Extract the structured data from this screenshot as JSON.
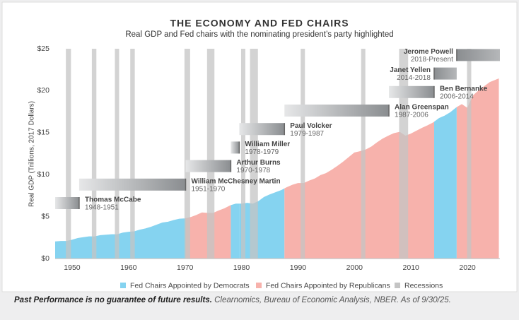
{
  "chart_data": {
    "type": "area",
    "title": "THE ECONOMY AND FED CHAIRS",
    "subtitle": "Real GDP and Fed chairs with the nominating president’s party highlighted",
    "y_label": "Real GDP (Trillions, 2017 Dollars)",
    "x": [
      1947,
      1948,
      1949,
      1950,
      1951,
      1952,
      1953,
      1954,
      1955,
      1956,
      1957,
      1958,
      1959,
      1960,
      1961,
      1962,
      1963,
      1964,
      1965,
      1966,
      1967,
      1968,
      1969,
      1970,
      1971,
      1972,
      1973,
      1974,
      1975,
      1976,
      1977,
      1978,
      1979,
      1980,
      1981,
      1982,
      1983,
      1984,
      1985,
      1986,
      1987,
      1988,
      1989,
      1990,
      1991,
      1992,
      1993,
      1994,
      1995,
      1996,
      1997,
      1998,
      1999,
      2000,
      2001,
      2002,
      2003,
      2004,
      2005,
      2006,
      2007,
      2008,
      2009,
      2010,
      2011,
      2012,
      2013,
      2014,
      2015,
      2016,
      2017,
      2018,
      2019,
      2020,
      2021,
      2022,
      2023,
      2024,
      2025.5
    ],
    "values": [
      2.0,
      2.05,
      2.05,
      2.2,
      2.4,
      2.5,
      2.6,
      2.6,
      2.75,
      2.8,
      2.85,
      2.85,
      3.05,
      3.15,
      3.2,
      3.4,
      3.55,
      3.75,
      4.0,
      4.25,
      4.35,
      4.55,
      4.7,
      4.75,
      4.9,
      5.15,
      5.45,
      5.4,
      5.4,
      5.7,
      5.95,
      6.3,
      6.5,
      6.5,
      6.6,
      6.5,
      6.8,
      7.3,
      7.6,
      7.85,
      8.1,
      8.45,
      8.75,
      8.95,
      8.95,
      9.25,
      9.5,
      9.9,
      10.15,
      10.55,
      11.0,
      11.5,
      12.05,
      12.6,
      12.75,
      12.95,
      13.3,
      13.8,
      14.25,
      14.6,
      14.9,
      15.05,
      14.6,
      14.85,
      15.2,
      15.55,
      15.85,
      16.2,
      16.7,
      17.0,
      17.4,
      17.95,
      18.35,
      17.9,
      19.4,
      20.0,
      20.5,
      21.0,
      21.4
    ],
    "xlim": [
      1947,
      2025.75
    ],
    "xticks": [
      1950,
      1960,
      1970,
      1980,
      1990,
      2000,
      2010,
      2020
    ],
    "ylim": [
      0,
      25
    ],
    "yticks": [
      {
        "value": 0,
        "label": "$0"
      },
      {
        "value": 5,
        "label": "$5"
      },
      {
        "value": 10,
        "label": "$10"
      },
      {
        "value": 15,
        "label": "$15"
      },
      {
        "value": 20,
        "label": "$20"
      },
      {
        "value": 25,
        "label": "$25"
      }
    ],
    "grid": false,
    "series": [
      {
        "name": "Fed Chairs Appointed by Democrats",
        "color": "#85d3f0",
        "chairs": [
          {
            "name": "Thomas McCabe",
            "term": "1948-1951",
            "start": 1947,
            "end": 1951.25
          },
          {
            "name": "William McChesney Martin",
            "term": "1951-1970",
            "start": 1951.25,
            "end": 1970.1
          },
          {
            "name": "William Miller",
            "term": "1978-1979",
            "start": 1978.1,
            "end": 1979.6
          },
          {
            "name": "Paul Volcker",
            "term": "1979-1987",
            "start": 1979.6,
            "end": 1987.6
          },
          {
            "name": "Janet Yellen",
            "term": "2014-2018",
            "start": 2014.1,
            "end": 2018.1,
            "label_side": "left"
          }
        ]
      },
      {
        "name": "Fed Chairs Appointed by Republicans",
        "color": "#f7b2ac",
        "chairs": [
          {
            "name": "Arthur Burns",
            "term": "1970-1978",
            "start": 1970.1,
            "end": 1978.1
          },
          {
            "name": "Alan Greenspan",
            "term": "1987-2006",
            "start": 1987.6,
            "end": 2006.1
          },
          {
            "name": "Ben Bernanke",
            "term": "2006-2014",
            "start": 2006.1,
            "end": 2014.1
          },
          {
            "name": "Jerome Powell",
            "term": "2018-Present",
            "start": 2018.1,
            "end": 2025.75,
            "label_side": "left"
          }
        ]
      }
    ],
    "recessions": {
      "name": "Recessions",
      "color": "#c4c4c4",
      "periods": [
        [
          1948.9,
          1949.8
        ],
        [
          1953.5,
          1954.3
        ],
        [
          1957.6,
          1958.3
        ],
        [
          1960.3,
          1961.1
        ],
        [
          1969.9,
          1970.9
        ],
        [
          1973.9,
          1975.2
        ],
        [
          1980.0,
          1980.6
        ],
        [
          1981.5,
          1982.9
        ],
        [
          1990.5,
          1991.2
        ],
        [
          2001.2,
          2001.9
        ],
        [
          2007.9,
          2009.5
        ],
        [
          2020.1,
          2020.5
        ]
      ]
    }
  },
  "footer": {
    "disclaimer": "Past Performance is no guarantee of future results.",
    "source": "Clearnomics, Bureau of Economic Analysis, NBER. As of 9/30/25."
  }
}
